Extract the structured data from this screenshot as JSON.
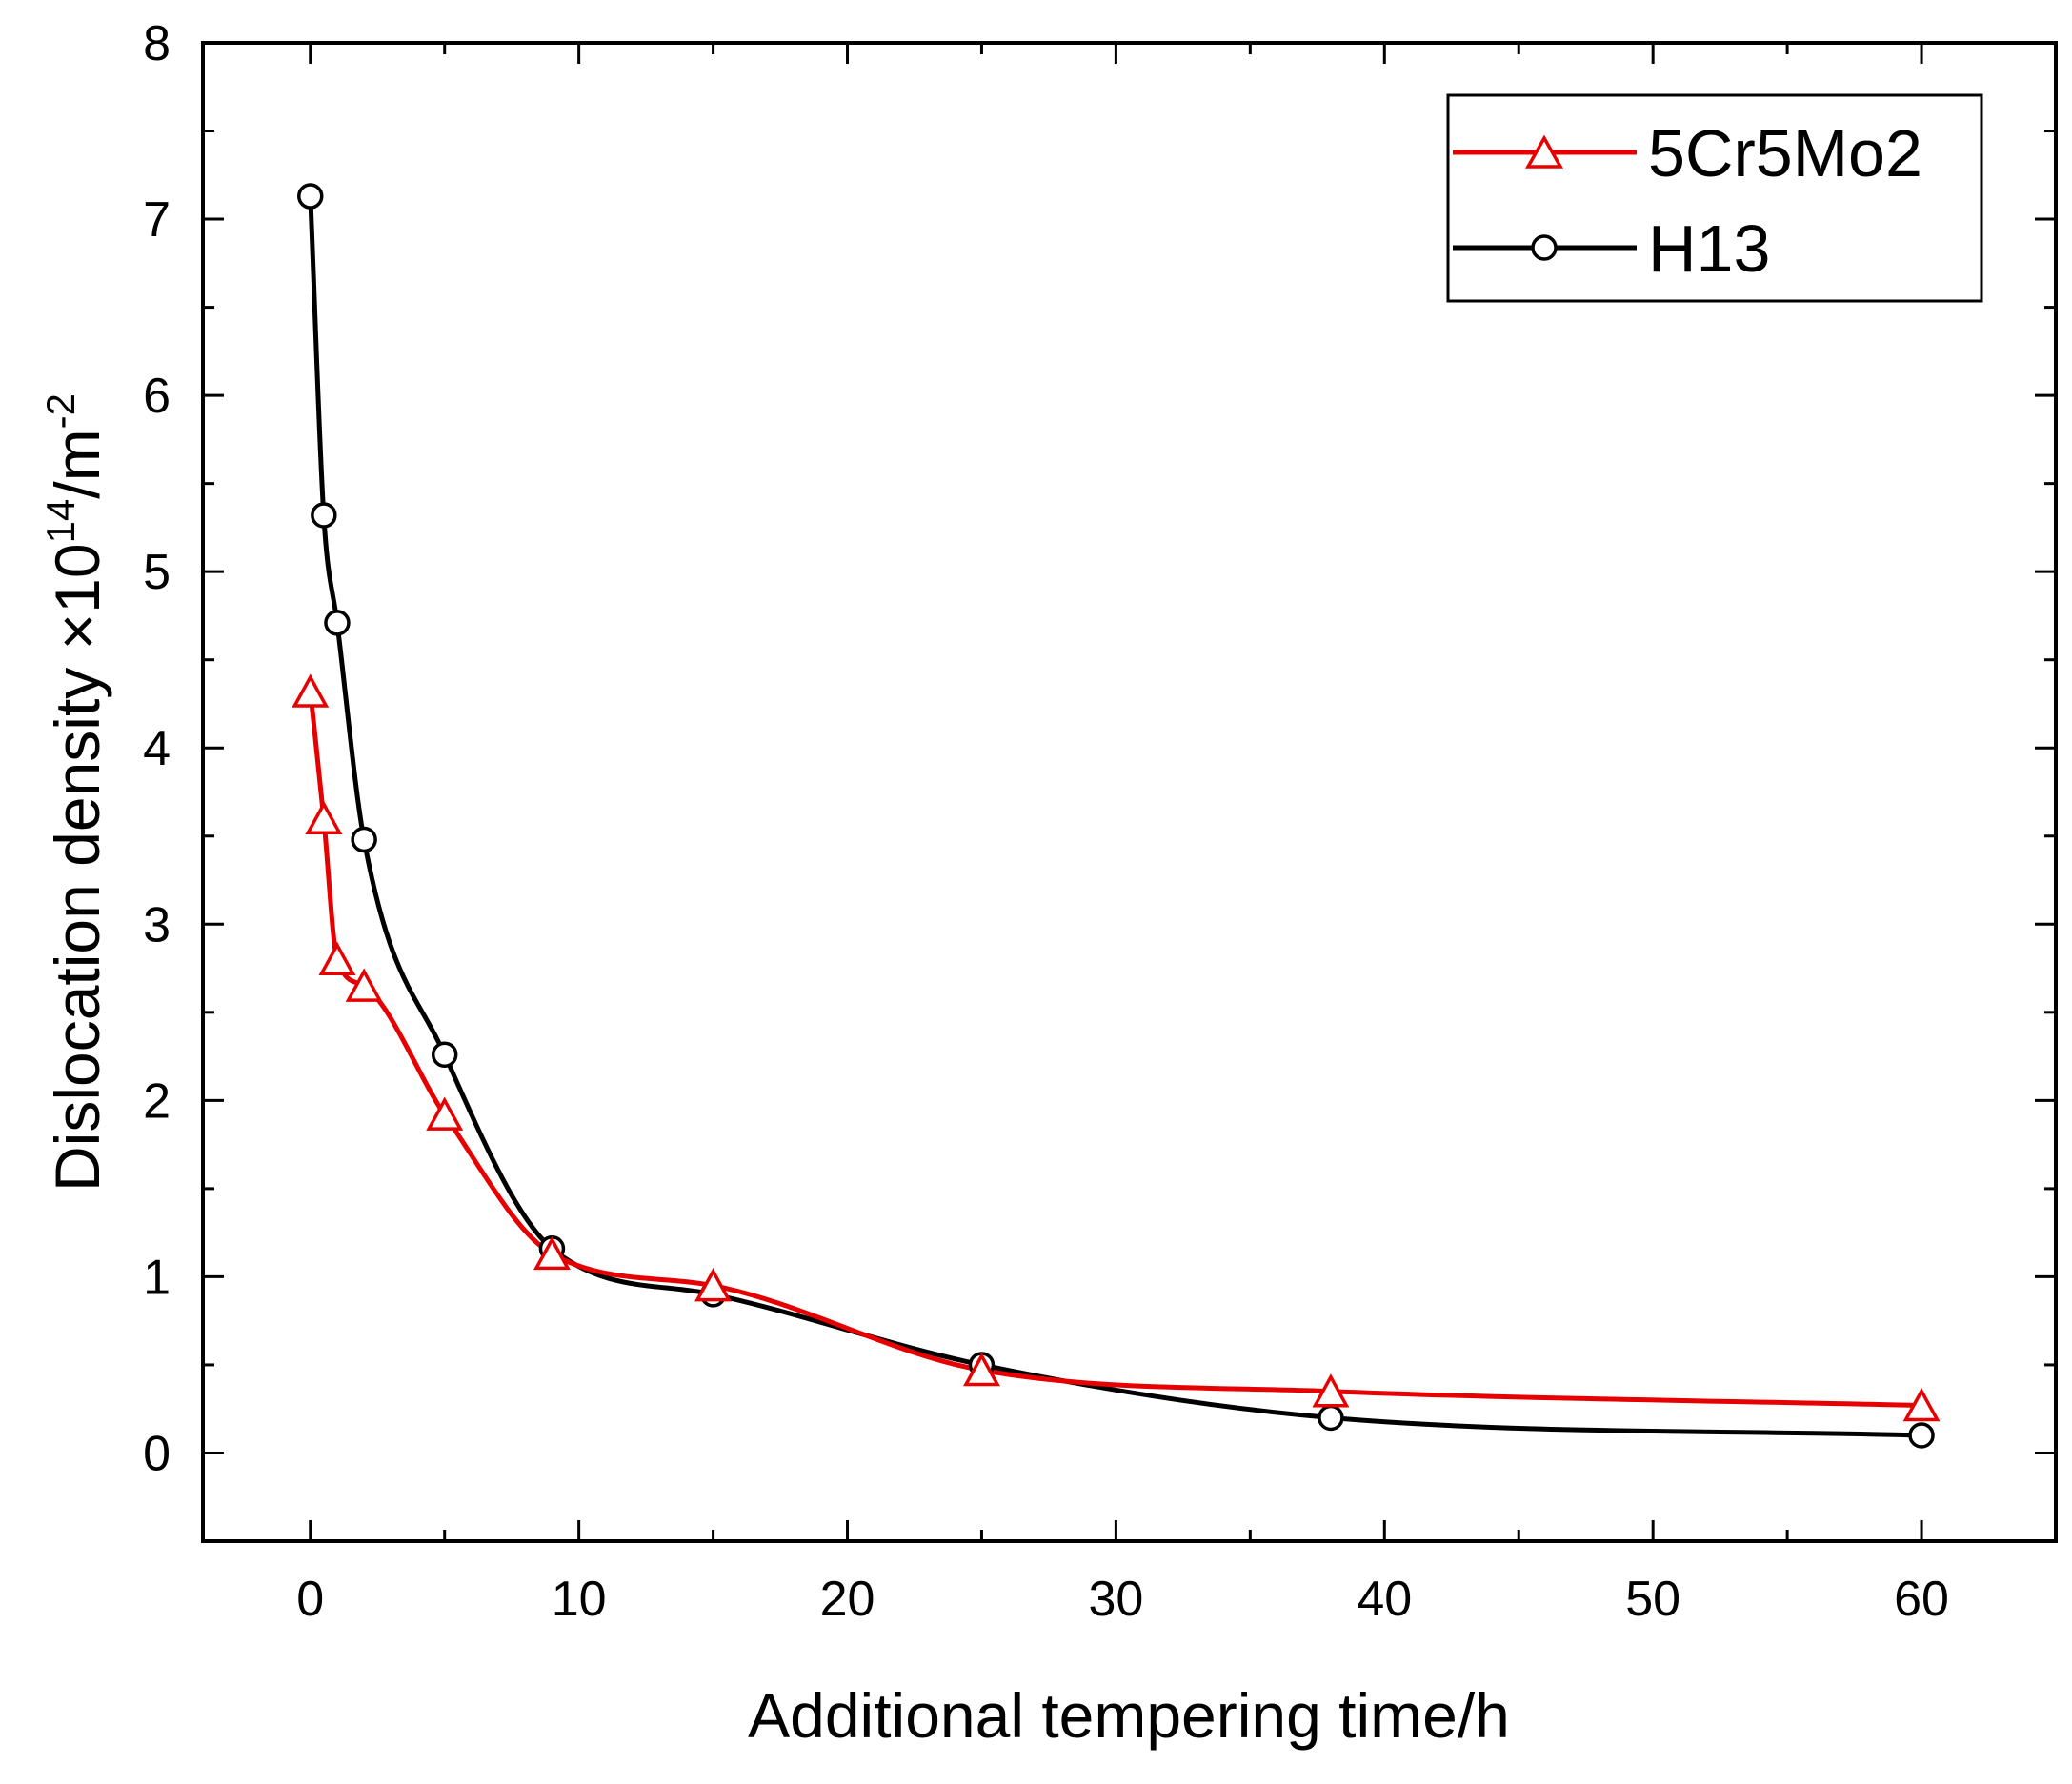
{
  "chart_data": {
    "type": "line",
    "title": "",
    "xlabel": "Additional tempering time/h",
    "ylabel_main": "Dislocation density ×10",
    "ylabel_exp": "14",
    "ylabel_unit": "/m",
    "ylabel_unit_exp": "-2",
    "xlim": [
      -4,
      65
    ],
    "ylim": [
      -0.5,
      8
    ],
    "xticks": [
      0,
      10,
      20,
      30,
      40,
      50,
      60
    ],
    "yticks": [
      0,
      1,
      2,
      3,
      4,
      5,
      6,
      7,
      8
    ],
    "x_minor_step": 5,
    "y_minor_step": 0.5,
    "grid": false,
    "legend_position": "top-right",
    "series": [
      {
        "name": "5Cr5Mo2",
        "color": "#e60000",
        "marker": "triangle",
        "x": [
          0,
          0.5,
          1,
          2,
          5,
          9,
          15,
          25,
          38,
          60
        ],
        "y": [
          4.32,
          3.6,
          2.8,
          2.65,
          1.92,
          1.13,
          0.95,
          0.47,
          0.35,
          0.27
        ]
      },
      {
        "name": "H13",
        "color": "#000000",
        "marker": "circle",
        "x": [
          0,
          0.5,
          1,
          2,
          5,
          9,
          15,
          25,
          38,
          60
        ],
        "y": [
          7.13,
          5.32,
          4.71,
          3.48,
          2.26,
          1.16,
          0.9,
          0.5,
          0.2,
          0.1
        ]
      }
    ]
  }
}
